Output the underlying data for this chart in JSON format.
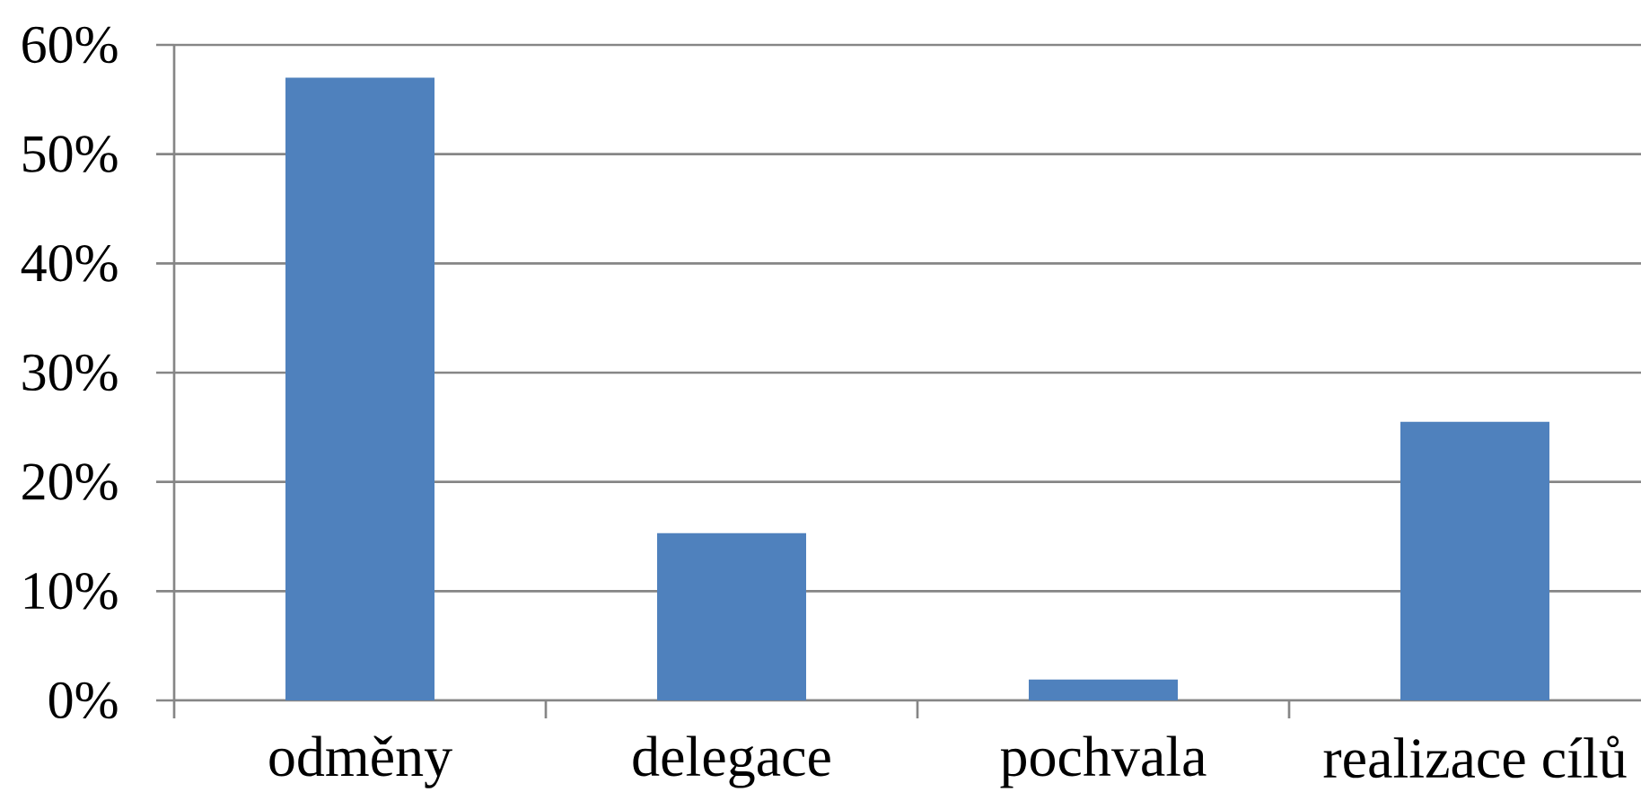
{
  "chart_data": {
    "type": "bar",
    "categories": [
      "odměny",
      "delegace",
      "pochvala",
      "realizace cílů"
    ],
    "values": [
      57,
      15.3,
      1.9,
      25.5
    ],
    "color": "#4f81bd",
    "ylim": [
      0,
      60
    ],
    "yticks": [
      {
        "value": 0,
        "label": "0%"
      },
      {
        "value": 10,
        "label": "10%"
      },
      {
        "value": 20,
        "label": "20%"
      },
      {
        "value": 30,
        "label": "30%"
      },
      {
        "value": 40,
        "label": "40%"
      },
      {
        "value": 50,
        "label": "50%"
      },
      {
        "value": 60,
        "label": "60%"
      }
    ],
    "grid": "y"
  }
}
